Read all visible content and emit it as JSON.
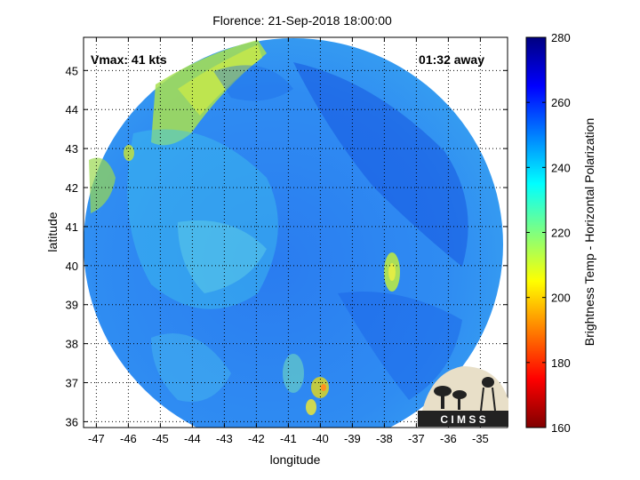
{
  "chart_data": {
    "type": "heatmap",
    "title": "Florence: 21-Sep-2018 18:00:00",
    "xlabel": "longitude",
    "ylabel": "latitude",
    "xlim": [
      -47.4,
      -34.15
    ],
    "ylim": [
      35.85,
      45.85
    ],
    "x_ticks": [
      "-47",
      "-46",
      "-45",
      "-44",
      "-43",
      "-42",
      "-41",
      "-40",
      "-39",
      "-38",
      "-37",
      "-36",
      "-35"
    ],
    "y_ticks": [
      "36",
      "37",
      "38",
      "39",
      "40",
      "41",
      "42",
      "43",
      "44",
      "45"
    ],
    "grid": true,
    "annotations": {
      "vmax": "Vmax: 41 kts",
      "time_away": "01:32 away"
    },
    "colorbar": {
      "label": "Brightness Temp - Horizontal Polarization",
      "range": [
        160,
        280
      ],
      "ticks": [
        "160",
        "180",
        "200",
        "220",
        "240",
        "260",
        "280"
      ],
      "colormap": "jet"
    },
    "swath": {
      "center_lon": -40.8,
      "center_lat": 40.6,
      "value_range": [
        205,
        262
      ],
      "warm_spots": [
        {
          "lon": -37.7,
          "lat": 39.8,
          "value": 215
        },
        {
          "lon": -39.9,
          "lat": 36.8,
          "value": 205
        },
        {
          "lon": -40.1,
          "lat": 36.3,
          "value": 210
        },
        {
          "lon": -45.9,
          "lat": 42.8,
          "value": 218
        }
      ]
    }
  },
  "logo": {
    "text": "C I M S S"
  }
}
